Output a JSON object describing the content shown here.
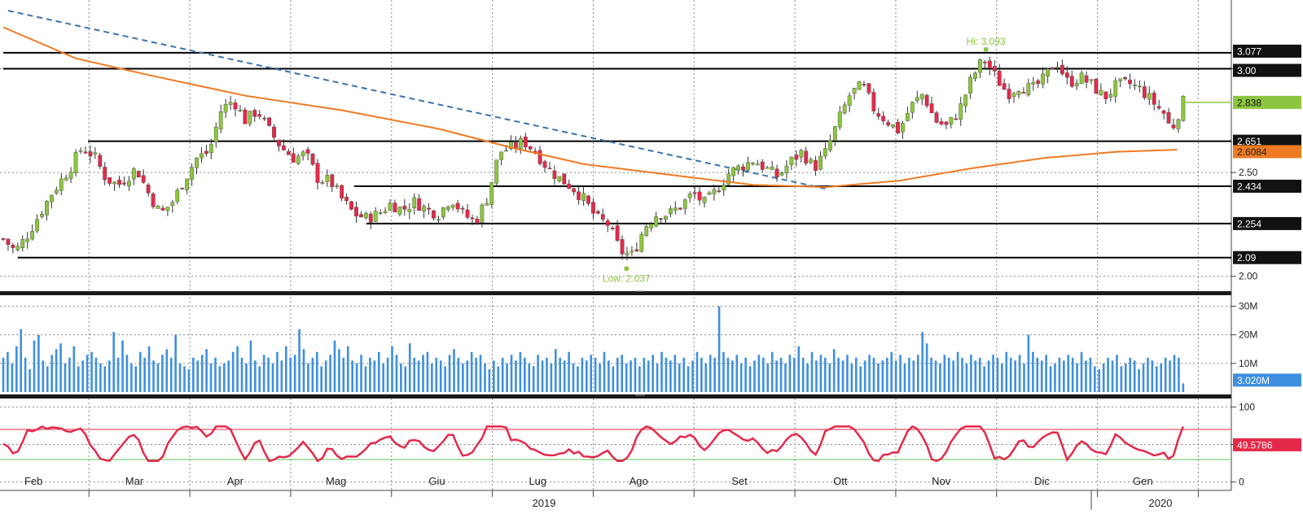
{
  "chart_data": {
    "type": "candlestick",
    "price_axis": {
      "ylim": [
        1.94,
        3.3
      ],
      "ticks": [
        "3.00",
        "2.50",
        "2.00"
      ]
    },
    "volume_axis": {
      "ylim": [
        0,
        31
      ],
      "ticks": [
        "30M",
        "20M",
        "10M"
      ]
    },
    "rsi_axis": {
      "ylim": [
        -8,
        108
      ],
      "ticks": [
        "100",
        "50",
        "0"
      ]
    },
    "months": [
      "Feb",
      "Mar",
      "Apr",
      "Mag",
      "Giu",
      "Lug",
      "Ago",
      "Set",
      "Ott",
      "Nov",
      "Dic",
      "Gen"
    ],
    "years": [
      "2019",
      "2020"
    ],
    "support_resistance_levels": [
      {
        "value": 3.077,
        "label": "3.077"
      },
      {
        "value": 3.0,
        "label": "3.00"
      },
      {
        "value": 2.651,
        "label": "2.651"
      },
      {
        "value": 2.434,
        "label": "2.434"
      },
      {
        "value": 2.254,
        "label": "2.254"
      },
      {
        "value": 2.09,
        "label": "2.09"
      }
    ],
    "last_price": {
      "value": 2.838,
      "label": "2.838"
    },
    "moving_average": {
      "last_value": 2.6084,
      "label": "2.6084"
    },
    "last_volume": {
      "value": 3.02,
      "label": "3.020M"
    },
    "last_rsi": {
      "value": 49.5786,
      "label": "49.5786"
    },
    "rsi_levels": {
      "overbought": 70,
      "oversold": 30
    },
    "annotations": {
      "high": "Hi: 3.093",
      "low": "Low: 2.037"
    },
    "ma_path": [
      [
        0,
        3.2
      ],
      [
        0.06,
        3.05
      ],
      [
        0.12,
        2.97
      ],
      [
        0.2,
        2.87
      ],
      [
        0.28,
        2.8
      ],
      [
        0.36,
        2.71
      ],
      [
        0.42,
        2.62
      ],
      [
        0.48,
        2.54
      ],
      [
        0.55,
        2.49
      ],
      [
        0.62,
        2.44
      ],
      [
        0.68,
        2.43
      ],
      [
        0.74,
        2.46
      ],
      [
        0.8,
        2.52
      ],
      [
        0.86,
        2.57
      ],
      [
        0.92,
        2.6
      ],
      [
        0.97,
        2.61
      ]
    ],
    "price_path": [
      [
        0,
        2.18
      ],
      [
        0.01,
        2.12
      ],
      [
        0.02,
        2.2
      ],
      [
        0.03,
        2.3
      ],
      [
        0.04,
        2.4
      ],
      [
        0.055,
        2.52
      ],
      [
        0.065,
        2.62
      ],
      [
        0.075,
        2.58
      ],
      [
        0.085,
        2.47
      ],
      [
        0.095,
        2.44
      ],
      [
        0.11,
        2.52
      ],
      [
        0.12,
        2.4
      ],
      [
        0.13,
        2.3
      ],
      [
        0.14,
        2.36
      ],
      [
        0.15,
        2.47
      ],
      [
        0.16,
        2.57
      ],
      [
        0.17,
        2.6
      ],
      [
        0.18,
        2.8
      ],
      [
        0.19,
        2.85
      ],
      [
        0.2,
        2.75
      ],
      [
        0.21,
        2.8
      ],
      [
        0.22,
        2.7
      ],
      [
        0.23,
        2.62
      ],
      [
        0.24,
        2.57
      ],
      [
        0.25,
        2.59
      ],
      [
        0.26,
        2.47
      ],
      [
        0.27,
        2.46
      ],
      [
        0.28,
        2.37
      ],
      [
        0.29,
        2.3
      ],
      [
        0.3,
        2.28
      ],
      [
        0.31,
        2.3
      ],
      [
        0.32,
        2.35
      ],
      [
        0.33,
        2.32
      ],
      [
        0.34,
        2.36
      ],
      [
        0.35,
        2.32
      ],
      [
        0.36,
        2.3
      ],
      [
        0.37,
        2.38
      ],
      [
        0.38,
        2.3
      ],
      [
        0.39,
        2.26
      ],
      [
        0.4,
        2.38
      ],
      [
        0.41,
        2.6
      ],
      [
        0.42,
        2.62
      ],
      [
        0.43,
        2.65
      ],
      [
        0.44,
        2.6
      ],
      [
        0.45,
        2.52
      ],
      [
        0.46,
        2.47
      ],
      [
        0.47,
        2.43
      ],
      [
        0.48,
        2.37
      ],
      [
        0.49,
        2.28
      ],
      [
        0.5,
        2.25
      ],
      [
        0.51,
        2.12
      ],
      [
        0.52,
        2.1
      ],
      [
        0.53,
        2.24
      ],
      [
        0.54,
        2.3
      ],
      [
        0.55,
        2.3
      ],
      [
        0.56,
        2.34
      ],
      [
        0.57,
        2.4
      ],
      [
        0.58,
        2.35
      ],
      [
        0.59,
        2.42
      ],
      [
        0.6,
        2.5
      ],
      [
        0.61,
        2.53
      ],
      [
        0.62,
        2.56
      ],
      [
        0.63,
        2.52
      ],
      [
        0.64,
        2.48
      ],
      [
        0.65,
        2.55
      ],
      [
        0.66,
        2.6
      ],
      [
        0.67,
        2.52
      ],
      [
        0.68,
        2.6
      ],
      [
        0.69,
        2.75
      ],
      [
        0.7,
        2.88
      ],
      [
        0.71,
        2.92
      ],
      [
        0.72,
        2.8
      ],
      [
        0.73,
        2.75
      ],
      [
        0.74,
        2.7
      ],
      [
        0.75,
        2.82
      ],
      [
        0.76,
        2.88
      ],
      [
        0.77,
        2.75
      ],
      [
        0.78,
        2.72
      ],
      [
        0.79,
        2.8
      ],
      [
        0.8,
        2.95
      ],
      [
        0.81,
        3.05
      ],
      [
        0.82,
        2.96
      ],
      [
        0.83,
        2.88
      ],
      [
        0.84,
        2.92
      ],
      [
        0.85,
        2.9
      ],
      [
        0.86,
        2.95
      ],
      [
        0.87,
        3.04
      ],
      [
        0.88,
        2.93
      ],
      [
        0.89,
        2.96
      ],
      [
        0.9,
        2.92
      ],
      [
        0.91,
        2.86
      ],
      [
        0.92,
        2.92
      ],
      [
        0.93,
        2.93
      ],
      [
        0.94,
        2.9
      ],
      [
        0.95,
        2.84
      ],
      [
        0.96,
        2.78
      ],
      [
        0.965,
        2.7
      ],
      [
        0.97,
        2.77
      ],
      [
        0.975,
        2.84
      ]
    ],
    "volume_values": [
      12,
      14,
      10,
      16,
      22,
      12,
      8,
      18,
      20,
      11,
      9,
      13,
      15,
      17,
      10,
      12,
      16,
      9,
      11,
      13,
      14,
      12,
      10,
      9,
      11,
      21,
      12,
      18,
      13,
      10,
      9,
      14,
      12,
      16,
      11,
      10,
      13,
      15,
      12,
      20,
      10,
      9,
      8,
      12,
      11,
      13,
      15,
      10,
      12,
      9,
      10,
      11,
      14,
      16,
      12,
      10,
      18,
      11,
      9,
      13,
      12,
      10,
      14,
      11,
      16,
      12,
      13,
      22,
      15,
      10,
      12,
      14,
      9,
      11,
      13,
      18,
      15,
      12,
      16,
      11,
      10,
      13,
      9,
      12,
      11,
      14,
      10,
      12,
      16,
      13,
      10,
      9,
      17,
      12,
      11,
      13,
      14,
      10,
      12,
      11,
      9,
      13,
      15,
      12,
      10,
      11,
      14,
      12,
      13,
      10,
      8,
      11,
      9,
      12,
      10,
      13,
      11,
      14,
      12,
      10,
      9,
      13,
      11,
      12,
      10,
      15,
      12,
      11,
      14,
      10,
      9,
      12,
      11,
      13,
      12,
      10,
      14,
      11,
      9,
      12,
      13,
      10,
      11,
      12,
      9,
      12,
      11,
      13,
      10,
      14,
      12,
      11,
      13,
      10,
      12,
      9,
      11,
      14,
      12,
      10,
      13,
      12,
      30,
      14,
      12,
      11,
      13,
      10,
      12,
      9,
      11,
      13,
      12,
      10,
      14,
      11,
      12,
      10,
      13,
      12,
      16,
      12,
      10,
      14,
      11,
      13,
      12,
      10,
      15,
      12,
      11,
      13,
      10,
      12,
      9,
      11,
      13,
      12,
      10,
      11,
      12,
      14,
      11,
      13,
      10,
      12,
      11,
      13,
      21,
      17,
      12,
      11,
      10,
      13,
      12,
      11,
      14,
      12,
      10,
      13,
      11,
      12,
      9,
      11,
      13,
      12,
      10,
      14,
      12,
      11,
      13,
      10,
      20,
      14,
      12,
      11,
      13,
      9,
      10,
      12,
      11,
      13,
      12,
      10,
      14,
      11,
      12,
      9,
      8,
      10,
      12,
      11,
      13,
      9,
      10,
      12,
      11,
      8,
      10,
      12,
      11,
      9,
      10,
      12,
      11,
      13,
      12,
      3
    ]
  }
}
